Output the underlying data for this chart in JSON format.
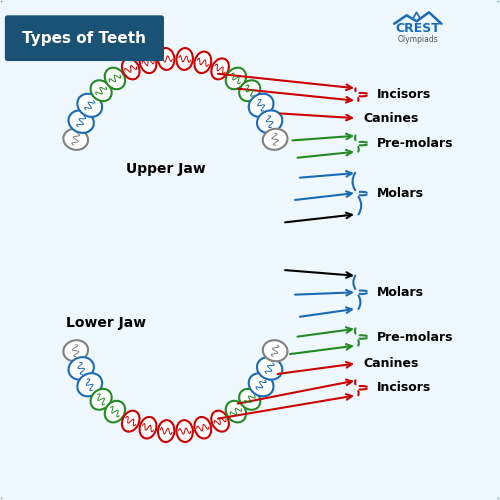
{
  "title": "Types of Teeth",
  "title_bg": "#1a5276",
  "title_color": "white",
  "bg_color": "#f0f8ff",
  "border_color": "#2980b9",
  "colors": {
    "incisor": "#cc0000",
    "canine": "#cc0000",
    "premolar": "#228B22",
    "molar": "#1a6bb5",
    "wisdom": "#808080"
  },
  "labels": {
    "upper_jaw": "Upper Jaw",
    "lower_jaw": "Lower Jaw",
    "incisors": "Incisors",
    "canines": "Canines",
    "premolars": "Pre-molars",
    "molars": "Molars"
  }
}
